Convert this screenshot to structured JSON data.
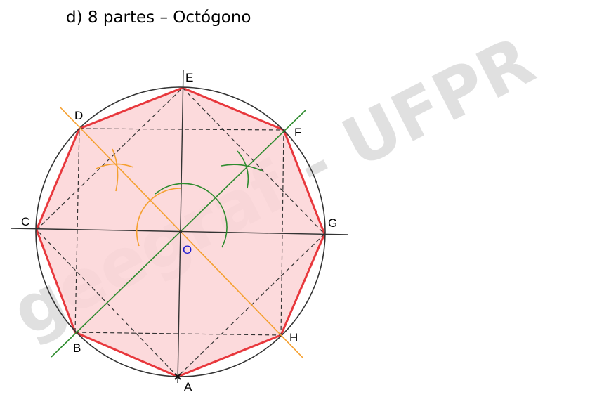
{
  "heading": "d) 8 partes – Octógono",
  "watermark": "geegraf - UFPR",
  "points": {
    "A": "A",
    "B": "B",
    "C": "C",
    "D": "D",
    "E": "E",
    "F": "F",
    "G": "G",
    "H": "H",
    "O": "O"
  },
  "colors": {
    "octagon_stroke": "#e8383d",
    "octagon_fill": "#fbd3d6",
    "circle": "#333333",
    "diameter_lines": "#333333",
    "bisector_orange": "#f5a030",
    "bisector_green": "#2e8b2e",
    "dashed_square": "#333333",
    "center_label": "#1a1ad0"
  }
}
